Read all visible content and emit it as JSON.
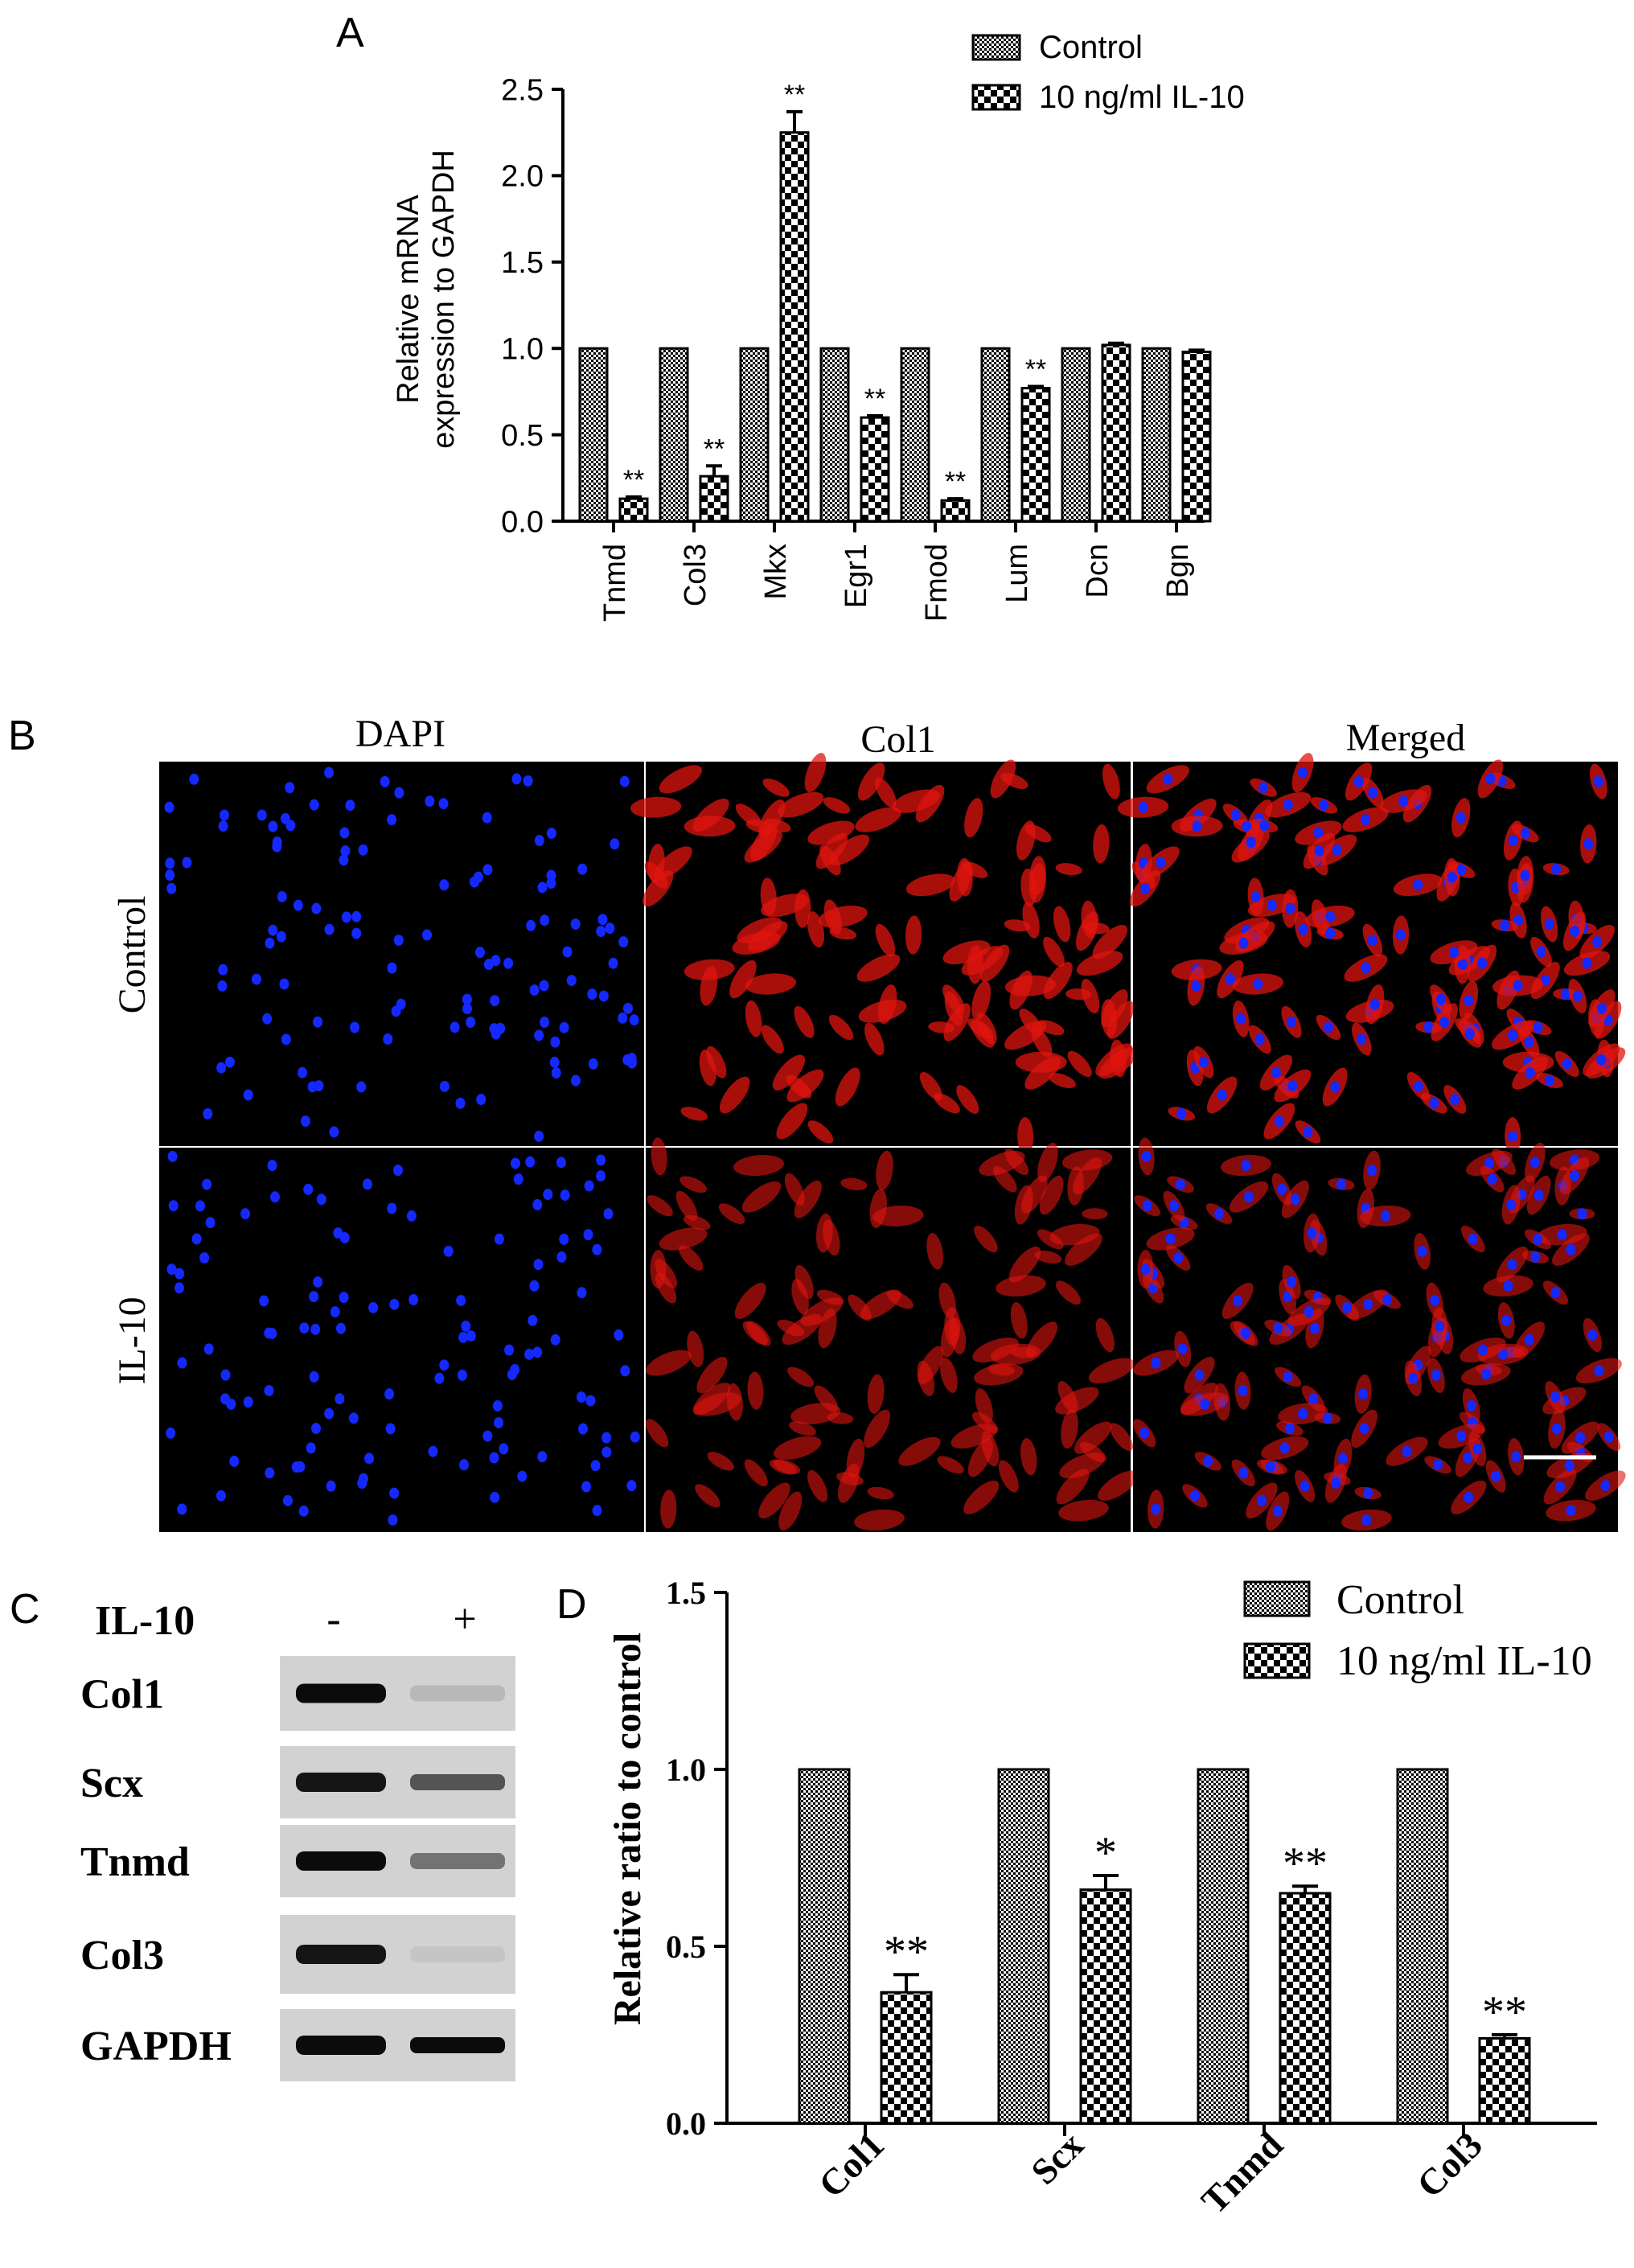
{
  "panel_labels": {
    "a": "A",
    "b": "B",
    "c": "C",
    "d": "D"
  },
  "legend": {
    "control": "Control",
    "il10": "10 ng/ml IL-10"
  },
  "colors": {
    "background": "#ffffff",
    "ink": "#000000",
    "dapi": "#1428ff",
    "col1": "#e0140f",
    "tick_speck": "#40e0e0"
  },
  "chart_data": [
    {
      "id": "A",
      "type": "bar",
      "ylabel_lines": [
        "Relative mRNA",
        "expression to GAPDH"
      ],
      "xlabel": "",
      "ylim": [
        0,
        2.5
      ],
      "yticks": [
        "0.0",
        "0.5",
        "1.0",
        "1.5",
        "2.0",
        "2.5"
      ],
      "categories": [
        "Tnmd",
        "Col3",
        "Mkx",
        "Egr1",
        "Fmod",
        "Lum",
        "Dcn",
        "Bgn"
      ],
      "series": [
        {
          "name": "Control",
          "values": [
            1.0,
            1.0,
            1.0,
            1.0,
            1.0,
            1.0,
            1.0,
            1.0
          ],
          "errors": [
            0,
            0,
            0,
            0,
            0,
            0,
            0,
            0
          ],
          "pattern": "fine-check"
        },
        {
          "name": "10 ng/ml IL-10",
          "values": [
            0.13,
            0.26,
            2.25,
            0.6,
            0.12,
            0.77,
            1.02,
            0.98
          ],
          "errors": [
            0.01,
            0.06,
            0.12,
            0.01,
            0.01,
            0.01,
            0.01,
            0.01
          ],
          "pattern": "coarse-check"
        }
      ],
      "annotations": [
        "**",
        "**",
        "**",
        "**",
        "**",
        "**",
        "",
        ""
      ],
      "grid": false,
      "legend_position": "top-right"
    },
    {
      "id": "D",
      "type": "bar",
      "ylabel": "Relative ratio to control",
      "xlabel": "",
      "ylim": [
        0,
        1.5
      ],
      "yticks": [
        "0.0",
        "0.5",
        "1.0",
        "1.5"
      ],
      "categories": [
        "Col1",
        "Scx",
        "Tnmd",
        "Col3"
      ],
      "series": [
        {
          "name": "Control",
          "values": [
            1.0,
            1.0,
            1.0,
            1.0
          ],
          "errors": [
            0,
            0,
            0,
            0
          ],
          "pattern": "fine-check"
        },
        {
          "name": "10 ng/ml IL-10",
          "values": [
            0.37,
            0.66,
            0.65,
            0.24
          ],
          "errors": [
            0.05,
            0.04,
            0.02,
            0.01
          ],
          "pattern": "coarse-check"
        }
      ],
      "annotations": [
        "**",
        "*",
        "**",
        "**"
      ],
      "grid": false,
      "legend_position": "top-right"
    }
  ],
  "microscopy": {
    "columns": [
      "DAPI",
      "Col1",
      "Merged"
    ],
    "rows": [
      "Control",
      "IL-10"
    ],
    "scale_bar": true
  },
  "western_blot": {
    "treatment_label": "IL-10",
    "lanes": [
      "-",
      "+"
    ],
    "bands": [
      {
        "name": "Col1",
        "minus": 0.95,
        "plus": 0.12
      },
      {
        "name": "Scx",
        "minus": 0.9,
        "plus": 0.6
      },
      {
        "name": "Tnmd",
        "minus": 0.95,
        "plus": 0.45
      },
      {
        "name": "Col3",
        "minus": 0.9,
        "plus": 0.06
      },
      {
        "name": "GAPDH",
        "minus": 0.95,
        "plus": 0.95
      }
    ]
  }
}
